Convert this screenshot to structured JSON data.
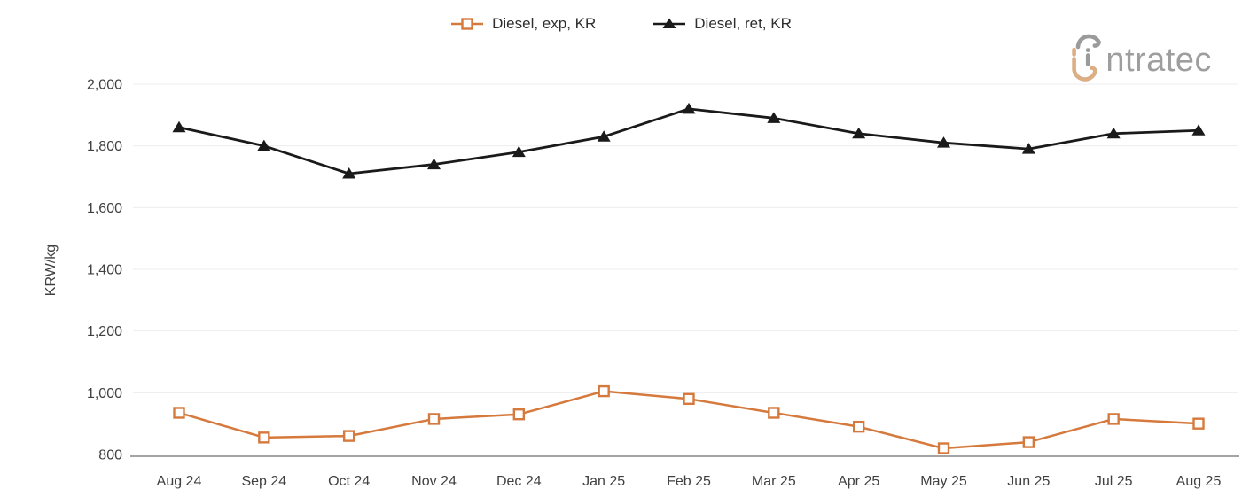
{
  "legend": {
    "items": [
      {
        "label": "Diesel, exp, KR",
        "marker": "square-hollow",
        "color": "#d5793c"
      },
      {
        "label": "Diesel, ret, KR",
        "marker": "triangle-filled",
        "color": "#1a1a1a"
      }
    ]
  },
  "logo": {
    "name": "intratec",
    "text_after_icon": "ntratec",
    "gray": "#9b9b9b",
    "tan": "#dcae85"
  },
  "chart_data": {
    "type": "line",
    "categories": [
      "Aug 24",
      "Sep 24",
      "Oct 24",
      "Nov 24",
      "Dec 24",
      "Jan 25",
      "Feb 25",
      "Mar 25",
      "Apr 25",
      "May 25",
      "Jun 25",
      "Jul 25",
      "Aug 25"
    ],
    "series": [
      {
        "name": "Diesel, exp, KR",
        "color": "#d5793c",
        "marker": "square-hollow",
        "values": [
          935,
          855,
          860,
          915,
          930,
          1005,
          980,
          935,
          890,
          820,
          840,
          915,
          900
        ]
      },
      {
        "name": "Diesel, ret, KR",
        "color": "#1a1a1a",
        "marker": "triangle-filled",
        "values": [
          1860,
          1800,
          1710,
          1740,
          1780,
          1830,
          1920,
          1890,
          1840,
          1810,
          1790,
          1840,
          1850
        ]
      }
    ],
    "title": "",
    "xlabel": "",
    "ylabel": "KRW/kg",
    "ylim": [
      800,
      2000
    ],
    "yticks": [
      800,
      1000,
      1200,
      1400,
      1600,
      1800,
      2000
    ],
    "grid": "horizontal-light",
    "legend_position": "top-center"
  },
  "colors": {
    "grid": "#ededed",
    "axis_line": "#6e6e6e",
    "tick_text": "#404040",
    "legend_text": "#2e2e2e",
    "background": "#ffffff"
  }
}
